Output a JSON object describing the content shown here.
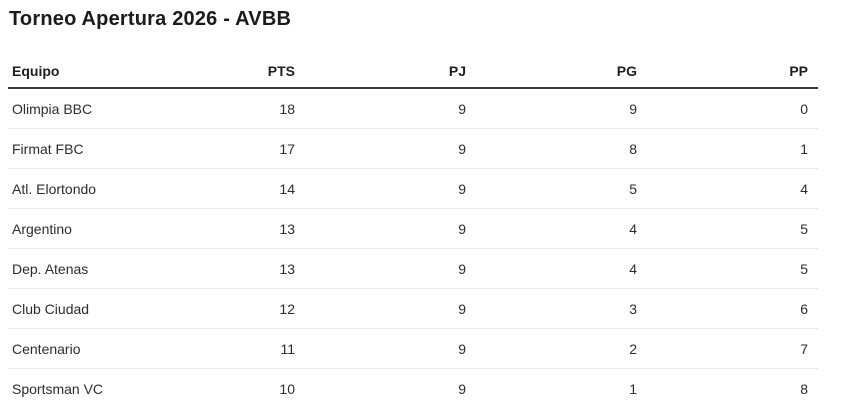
{
  "header": {
    "title": "Torneo Apertura 2026 - AVBB"
  },
  "table": {
    "columns": [
      {
        "key": "equipo",
        "label": "Equipo",
        "align": "left"
      },
      {
        "key": "pts",
        "label": "PTS",
        "align": "right"
      },
      {
        "key": "pj",
        "label": "PJ",
        "align": "right"
      },
      {
        "key": "pg",
        "label": "PG",
        "align": "right"
      },
      {
        "key": "pp",
        "label": "PP",
        "align": "right"
      }
    ],
    "rows": [
      {
        "equipo": "Olimpia BBC",
        "pts": 18,
        "pj": 9,
        "pg": 9,
        "pp": 0
      },
      {
        "equipo": "Firmat FBC",
        "pts": 17,
        "pj": 9,
        "pg": 8,
        "pp": 1
      },
      {
        "equipo": "Atl. Elortondo",
        "pts": 14,
        "pj": 9,
        "pg": 5,
        "pp": 4
      },
      {
        "equipo": "Argentino",
        "pts": 13,
        "pj": 9,
        "pg": 4,
        "pp": 5
      },
      {
        "equipo": "Dep. Atenas",
        "pts": 13,
        "pj": 9,
        "pg": 4,
        "pp": 5
      },
      {
        "equipo": "Club Ciudad",
        "pts": 12,
        "pj": 9,
        "pg": 3,
        "pp": 6
      },
      {
        "equipo": "Centenario",
        "pts": 11,
        "pj": 9,
        "pg": 2,
        "pp": 7
      },
      {
        "equipo": "Sportsman VC",
        "pts": 10,
        "pj": 9,
        "pg": 1,
        "pp": 8
      }
    ]
  },
  "colors": {
    "background": "#ffffff",
    "title_text": "#1b1b1b",
    "header_text": "#1f1f1f",
    "cell_text": "#2d2d2d",
    "header_border": "#3a3a3e",
    "row_divider": "#e9e9e9"
  }
}
